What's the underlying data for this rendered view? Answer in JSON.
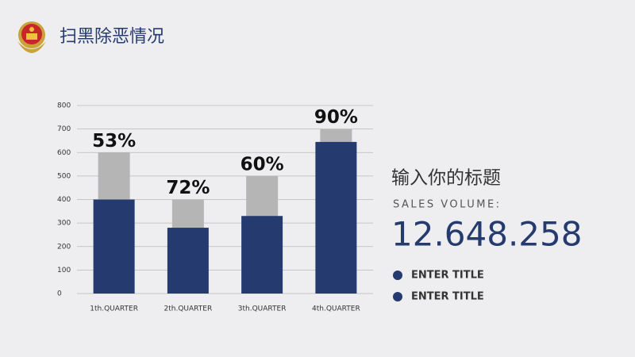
{
  "header": {
    "title": "扫黑除恶情况"
  },
  "chart_data": {
    "type": "bar",
    "categories": [
      "1th.QUARTER",
      "2th.QUARTER",
      "3th.QUARTER",
      "4th.QUARTER"
    ],
    "series": [
      {
        "color": "#b5b5b5",
        "values": [
          600,
          400,
          500,
          700
        ]
      },
      {
        "color": "#253a6e",
        "values": [
          400,
          280,
          330,
          645
        ]
      }
    ],
    "annotations": [
      "53%",
      "72%",
      "60%",
      "90%"
    ],
    "ylim": [
      0,
      800
    ],
    "yticks": [
      0,
      100,
      200,
      300,
      400,
      500,
      600,
      700,
      800
    ],
    "grid": true
  },
  "panel": {
    "heading": "输入你的标题",
    "label": "SALES VOLUME:",
    "figure": "12.648.258",
    "items": [
      "ENTER TITLE",
      "ENTER TITLE"
    ],
    "item_color": "#253a6e"
  }
}
